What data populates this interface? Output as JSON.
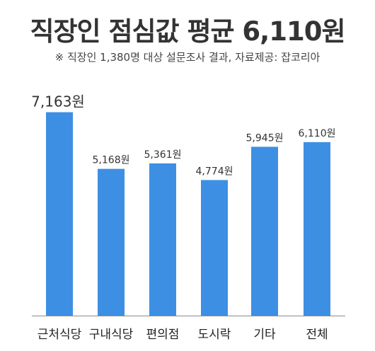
{
  "title": "직장인 점심값 평균 6,110원",
  "subtitle": "※ 직장인 1,380명 대상 설문조사 결과,  자료제공: 잡코리아",
  "colors": {
    "bar": "#3d8fe3",
    "baseline": "#8a8a8a"
  },
  "chart_data": {
    "type": "bar",
    "title": "직장인 점심값 평균 6,110원",
    "subtitle": "※ 직장인 1,380명 대상 설문조사 결과,  자료제공: 잡코리아",
    "categories": [
      "근처식당",
      "구내식당",
      "편의점",
      "도시락",
      "기타",
      "전체"
    ],
    "values": [
      7163,
      5168,
      5361,
      4774,
      5945,
      6110
    ],
    "value_labels": [
      "7,163원",
      "5,168원",
      "5,361원",
      "4,774원",
      "5,945원",
      "6,110원"
    ],
    "xlabel": "",
    "ylabel": "",
    "ylim": [
      0,
      7750
    ],
    "grid": false,
    "legend": "none"
  }
}
